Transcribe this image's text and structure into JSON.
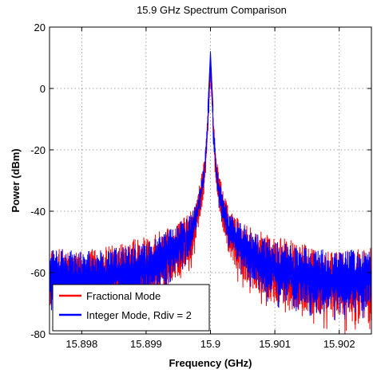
{
  "chart_data": {
    "type": "line",
    "title": "15.9 GHz Spectrum Comparison",
    "xlabel": "Frequency (GHz)",
    "ylabel": "Power (dBm)",
    "xlim": [
      15.8975,
      15.9025
    ],
    "ylim": [
      -80,
      20
    ],
    "xticks": [
      15.898,
      15.899,
      15.9,
      15.901,
      15.902
    ],
    "xtick_labels": [
      "15.898",
      "15.899",
      "15.9",
      "15.901",
      "15.902"
    ],
    "yticks": [
      -80,
      -60,
      -40,
      -20,
      0,
      20
    ],
    "ytick_labels": [
      "-80",
      "-60",
      "-40",
      "-20",
      "0",
      "20"
    ],
    "grid": true,
    "legend": "bottom-left",
    "series": [
      {
        "name": "Fractional Mode",
        "color": "#ff0000",
        "peak": {
          "x": 15.9,
          "y": 10
        },
        "envelope": {
          "x": [
            15.8975,
            15.898,
            15.8985,
            15.899,
            15.8993,
            15.8995,
            15.8997,
            15.8998,
            15.8999,
            15.89995,
            15.9,
            15.90005,
            15.9001,
            15.9002,
            15.9003,
            15.9005,
            15.9007,
            15.901,
            15.9015,
            15.902,
            15.9025
          ],
          "upper": [
            -52,
            -53,
            -51,
            -48,
            -46,
            -44,
            -40,
            -34,
            -24,
            -10,
            10,
            -10,
            -24,
            -34,
            -40,
            -44,
            -46,
            -48,
            -51,
            -53,
            -52
          ],
          "lower": [
            -72,
            -74,
            -73,
            -70,
            -66,
            -62,
            -55,
            -47,
            -35,
            -20,
            5,
            -20,
            -35,
            -47,
            -55,
            -62,
            -66,
            -70,
            -73,
            -76,
            -76
          ]
        }
      },
      {
        "name": "Integer Mode, Rdiv = 2",
        "color": "#0000ff",
        "peak": {
          "x": 15.9,
          "y": 12
        },
        "envelope": {
          "x": [
            15.8975,
            15.898,
            15.8985,
            15.899,
            15.8993,
            15.8995,
            15.8997,
            15.8998,
            15.8999,
            15.89995,
            15.9,
            15.90005,
            15.9001,
            15.9002,
            15.9003,
            15.9005,
            15.9007,
            15.901,
            15.9015,
            15.902,
            15.9025
          ],
          "upper": [
            -52,
            -53,
            -52,
            -50,
            -47,
            -44,
            -41,
            -36,
            -26,
            -12,
            12,
            -12,
            -26,
            -36,
            -41,
            -44,
            -47,
            -50,
            -52,
            -53,
            -52
          ],
          "lower": [
            -70,
            -71,
            -70,
            -67,
            -63,
            -58,
            -52,
            -44,
            -32,
            -18,
            8,
            -18,
            -32,
            -44,
            -52,
            -58,
            -63,
            -67,
            -70,
            -72,
            -71
          ]
        }
      }
    ]
  }
}
